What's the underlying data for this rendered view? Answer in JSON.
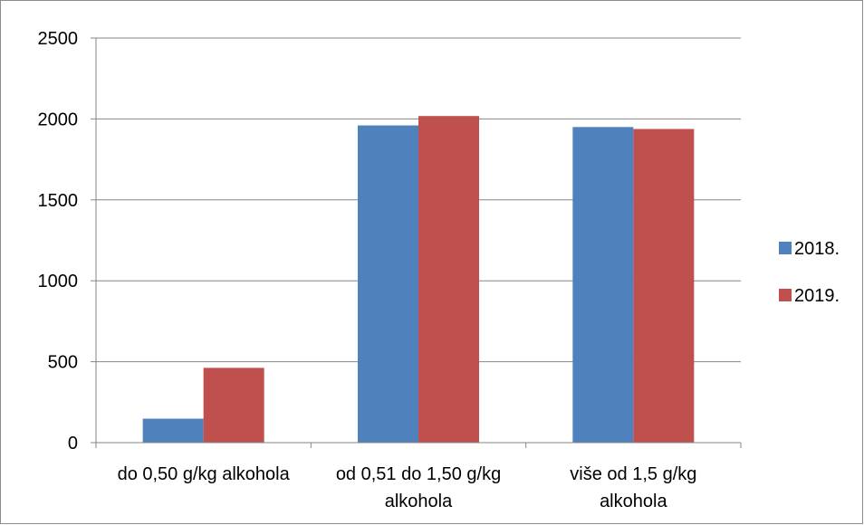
{
  "chart_data": {
    "type": "bar",
    "categories": [
      [
        "do 0,50 g/kg alkohola"
      ],
      [
        "od 0,51 do 1,50 g/kg",
        "alkohola"
      ],
      [
        "više od 1,5 g/kg",
        "alkohola"
      ]
    ],
    "series": [
      {
        "name": "2018.",
        "values": [
          148,
          1960,
          1950
        ],
        "color": "#4f81bd"
      },
      {
        "name": "2019.",
        "values": [
          462,
          2018,
          1938
        ],
        "color": "#c0504d"
      }
    ],
    "title": "",
    "xlabel": "",
    "ylabel": "",
    "ylim": [
      0,
      2500
    ],
    "yticks": [
      0,
      500,
      1000,
      1500,
      2000,
      2500
    ],
    "grid": true,
    "legend_position": "right"
  }
}
